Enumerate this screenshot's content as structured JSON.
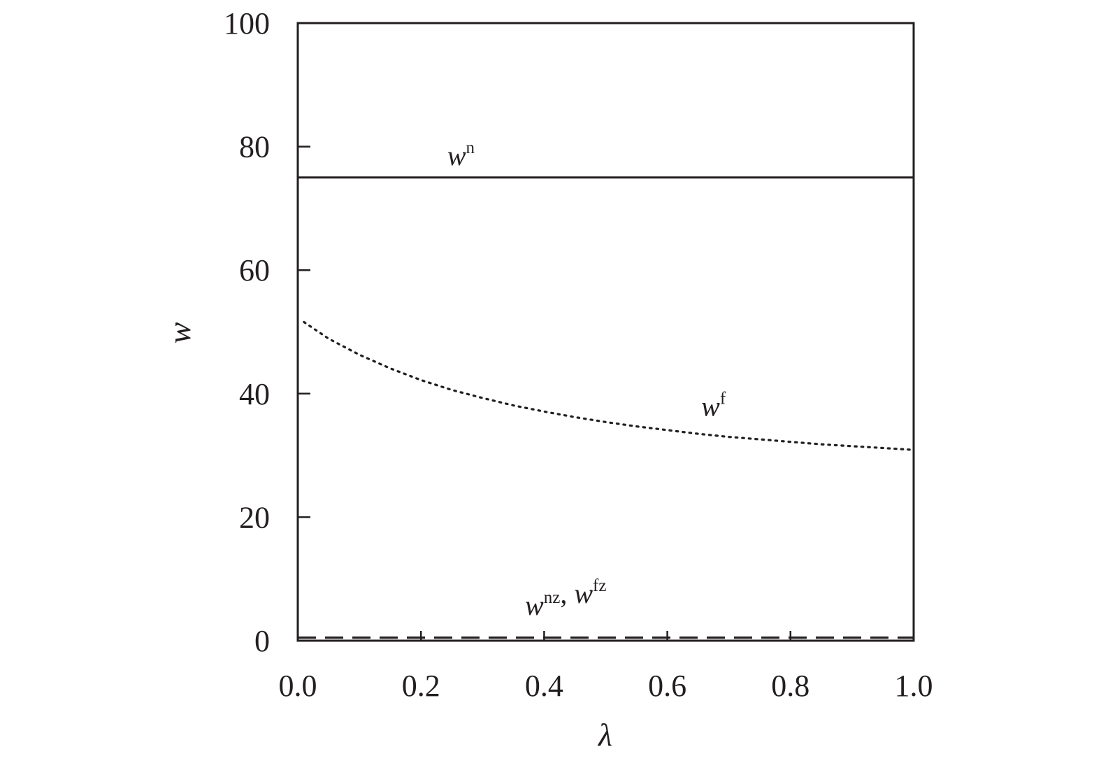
{
  "chart_data": {
    "type": "line",
    "xlabel": "λ",
    "ylabel": "w",
    "xlim": [
      0.0,
      1.0
    ],
    "ylim": [
      0,
      100
    ],
    "x_ticks": [
      "0.0",
      "0.2",
      "0.4",
      "0.6",
      "0.8",
      "1.0"
    ],
    "y_ticks": [
      "0",
      "20",
      "40",
      "60",
      "80",
      "100"
    ],
    "grid": false,
    "legend": "none",
    "series": [
      {
        "base": "w",
        "sup": "n",
        "style": "solid",
        "color": "#231f20",
        "x": [
          0.0,
          0.2,
          0.4,
          0.6,
          0.8,
          1.0
        ],
        "y": [
          75,
          75,
          75,
          75,
          75,
          75
        ]
      },
      {
        "base": "w",
        "sup": "f",
        "style": "dotted",
        "color": "#231f20",
        "x": [
          0.01,
          0.05,
          0.1,
          0.15,
          0.2,
          0.25,
          0.3,
          0.35,
          0.4,
          0.45,
          0.5,
          0.55,
          0.6,
          0.65,
          0.7,
          0.75,
          0.8,
          0.85,
          0.9,
          0.95,
          1.0
        ],
        "y": [
          51.6,
          48.9,
          46.3,
          44.1,
          42.2,
          40.6,
          39.3,
          38.1,
          37.1,
          36.2,
          35.4,
          34.7,
          34.1,
          33.5,
          33.0,
          32.6,
          32.2,
          31.8,
          31.5,
          31.2,
          30.9
        ]
      },
      {
        "base": "w",
        "sup": "nz",
        "style": "dashed",
        "color": "#231f20",
        "x": [
          0.0,
          1.0
        ],
        "y": [
          0.5,
          0.5
        ]
      },
      {
        "base": "w",
        "sup": "fz",
        "style": "dashed",
        "color": "#231f20",
        "x": [
          0.0,
          1.0
        ],
        "y": [
          0.5,
          0.5
        ]
      }
    ],
    "annotations": [
      {
        "parts": [
          {
            "base": "w",
            "sup": "n"
          }
        ],
        "x": 0.265,
        "y": 77
      },
      {
        "parts": [
          {
            "base": "w",
            "sup": "f"
          }
        ],
        "x": 0.675,
        "y": 36.4
      },
      {
        "parts": [
          {
            "base": "w",
            "sup": "nz"
          },
          {
            "base": "w",
            "sup": "fz"
          }
        ],
        "x": 0.435,
        "y": 4.2
      }
    ]
  }
}
